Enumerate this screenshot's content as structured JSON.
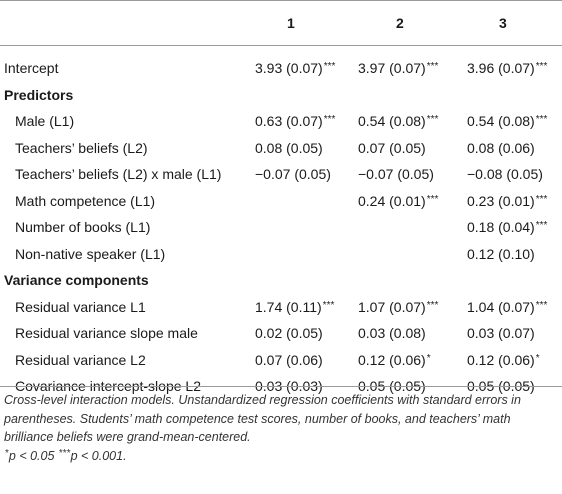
{
  "columns": [
    "1",
    "2",
    "3"
  ],
  "rows": [
    {
      "label": "Intercept",
      "kind": "data",
      "indent": false,
      "cells": [
        {
          "value": "3.93 (0.07)",
          "sig": "***"
        },
        {
          "value": "3.97 (0.07)",
          "sig": "***"
        },
        {
          "value": "3.96 (0.07)",
          "sig": "***"
        }
      ]
    },
    {
      "label": "Predictors",
      "kind": "section",
      "indent": false,
      "cells": []
    },
    {
      "label": "Male (L1)",
      "kind": "data",
      "indent": true,
      "cells": [
        {
          "value": "0.63 (0.07)",
          "sig": "***"
        },
        {
          "value": "0.54 (0.08)",
          "sig": "***"
        },
        {
          "value": "0.54 (0.08)",
          "sig": "***"
        }
      ]
    },
    {
      "label": "Teachers’ beliefs (L2)",
      "kind": "data",
      "indent": true,
      "cells": [
        {
          "value": "0.08 (0.05)",
          "sig": ""
        },
        {
          "value": "0.07 (0.05)",
          "sig": ""
        },
        {
          "value": "0.08 (0.06)",
          "sig": ""
        }
      ]
    },
    {
      "label": "Teachers’ beliefs (L2) x male (L1)",
      "kind": "data",
      "indent": true,
      "cells": [
        {
          "value": "−0.07 (0.05)",
          "sig": ""
        },
        {
          "value": "−0.07 (0.05)",
          "sig": ""
        },
        {
          "value": "−0.08 (0.05)",
          "sig": ""
        }
      ]
    },
    {
      "label": "Math competence (L1)",
      "kind": "data",
      "indent": true,
      "cells": [
        null,
        {
          "value": "0.24 (0.01)",
          "sig": "***"
        },
        {
          "value": "0.23 (0.01)",
          "sig": "***"
        }
      ]
    },
    {
      "label": "Number of books (L1)",
      "kind": "data",
      "indent": true,
      "cells": [
        null,
        null,
        {
          "value": "0.18 (0.04)",
          "sig": "***"
        }
      ]
    },
    {
      "label": "Non-native speaker (L1)",
      "kind": "data",
      "indent": true,
      "cells": [
        null,
        null,
        {
          "value": "0.12 (0.10)",
          "sig": ""
        }
      ]
    },
    {
      "label": "Variance components",
      "kind": "section",
      "indent": false,
      "cells": []
    },
    {
      "label": "Residual variance L1",
      "kind": "data",
      "indent": true,
      "cells": [
        {
          "value": "1.74 (0.11)",
          "sig": "***"
        },
        {
          "value": "1.07 (0.07)",
          "sig": "***"
        },
        {
          "value": "1.04 (0.07)",
          "sig": "***"
        }
      ]
    },
    {
      "label": "Residual variance slope male",
      "kind": "data",
      "indent": true,
      "cells": [
        {
          "value": "0.02 (0.05)",
          "sig": ""
        },
        {
          "value": "0.03 (0.08)",
          "sig": ""
        },
        {
          "value": "0.03 (0.07)",
          "sig": ""
        }
      ]
    },
    {
      "label": "Residual variance L2",
      "kind": "data",
      "indent": true,
      "cells": [
        {
          "value": "0.07 (0.06)",
          "sig": ""
        },
        {
          "value": "0.12 (0.06)",
          "sig": "*"
        },
        {
          "value": "0.12 (0.06)",
          "sig": "*"
        }
      ]
    },
    {
      "label": "Covariance intercept-slope L2",
      "kind": "data",
      "indent": true,
      "cells": [
        {
          "value": "0.03 (0.03)",
          "sig": ""
        },
        {
          "value": "0.05 (0.05)",
          "sig": ""
        },
        {
          "value": "0.05 (0.05)",
          "sig": ""
        }
      ]
    }
  ],
  "footnote": {
    "main": "Cross-level interaction models. Unstandardized regression coefficients with standard errors in parentheses. Students’ math competence test scores, number of books, and teachers’ math brilliance beliefs were grand-mean-centered.",
    "sig_mark_1": "*",
    "sig_text_1": "p < 0.05 ",
    "sig_mark_2": "***",
    "sig_text_2": "p < 0.001."
  }
}
